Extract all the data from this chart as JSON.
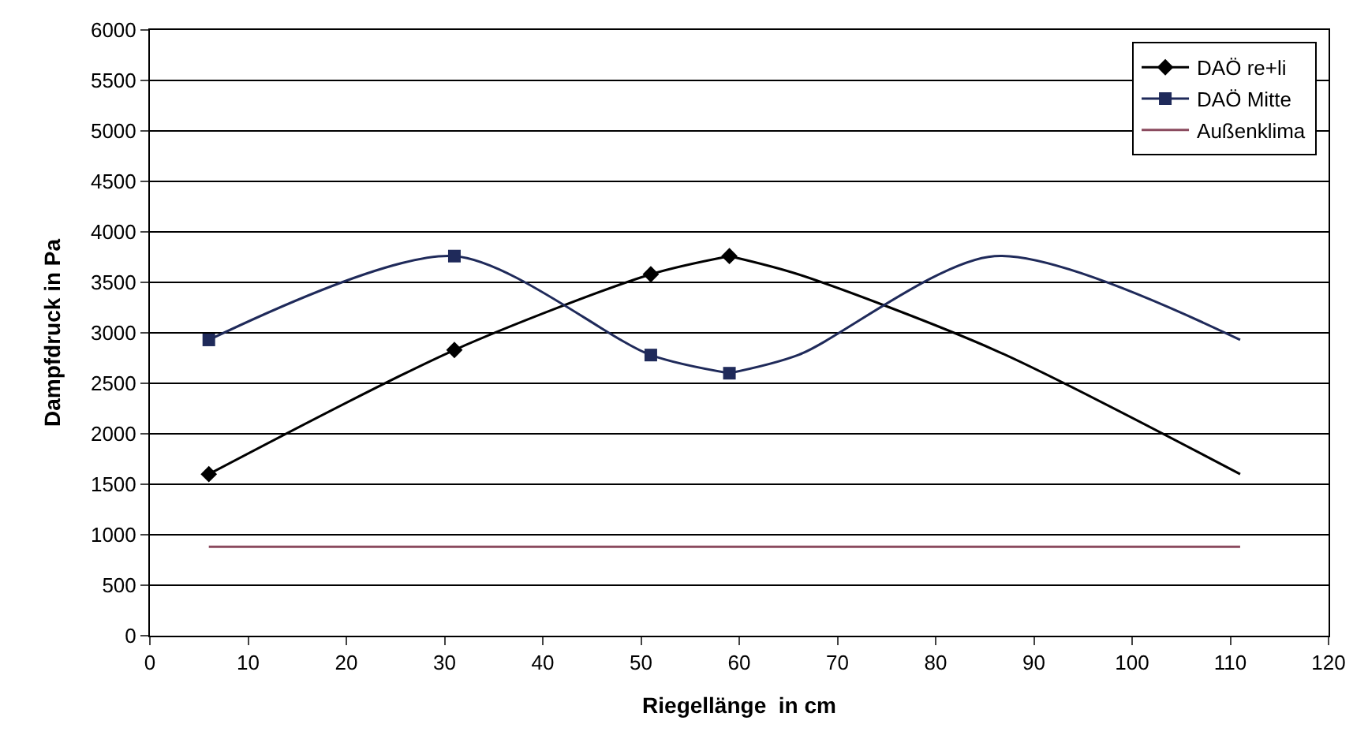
{
  "chart_data": {
    "type": "line",
    "xlabel": "Riegellänge  in cm",
    "ylabel": "Dampfdruck in Pa",
    "xlim": [
      0,
      120
    ],
    "xticks": [
      0,
      10,
      20,
      30,
      40,
      50,
      60,
      70,
      80,
      90,
      100,
      110,
      120
    ],
    "ylim": [
      0,
      6000
    ],
    "yticks": [
      0,
      500,
      1000,
      1500,
      2000,
      2500,
      3000,
      3500,
      4000,
      4500,
      5000,
      5500,
      6000
    ],
    "grid": "y",
    "legend": "top right",
    "series": [
      {
        "name": "DAÖ re+li",
        "color": "#000000",
        "marker": "diamond",
        "x": [
          6,
          31,
          51,
          59
        ],
        "values": [
          1600,
          2830,
          3580,
          3760
        ]
      },
      {
        "name": "DAÖ Mitte",
        "color": "#1f2a5a",
        "marker": "square",
        "x": [
          6,
          31,
          51,
          59
        ],
        "values": [
          2930,
          3760,
          2780,
          2600
        ]
      },
      {
        "name": "Außenklima",
        "color": "#8a4a5e",
        "marker": "none",
        "x": [
          6,
          111
        ],
        "values": [
          880,
          880
        ]
      },
      {
        "color": "#000000",
        "marker": "none",
        "x": [
          59,
          66,
          86,
          111
        ],
        "values": [
          3760,
          3580,
          2830,
          1600
        ]
      },
      {
        "color": "#1f2a5a",
        "marker": "none",
        "x": [
          59,
          66,
          86,
          111
        ],
        "values": [
          2600,
          2780,
          3760,
          2930
        ]
      }
    ]
  }
}
